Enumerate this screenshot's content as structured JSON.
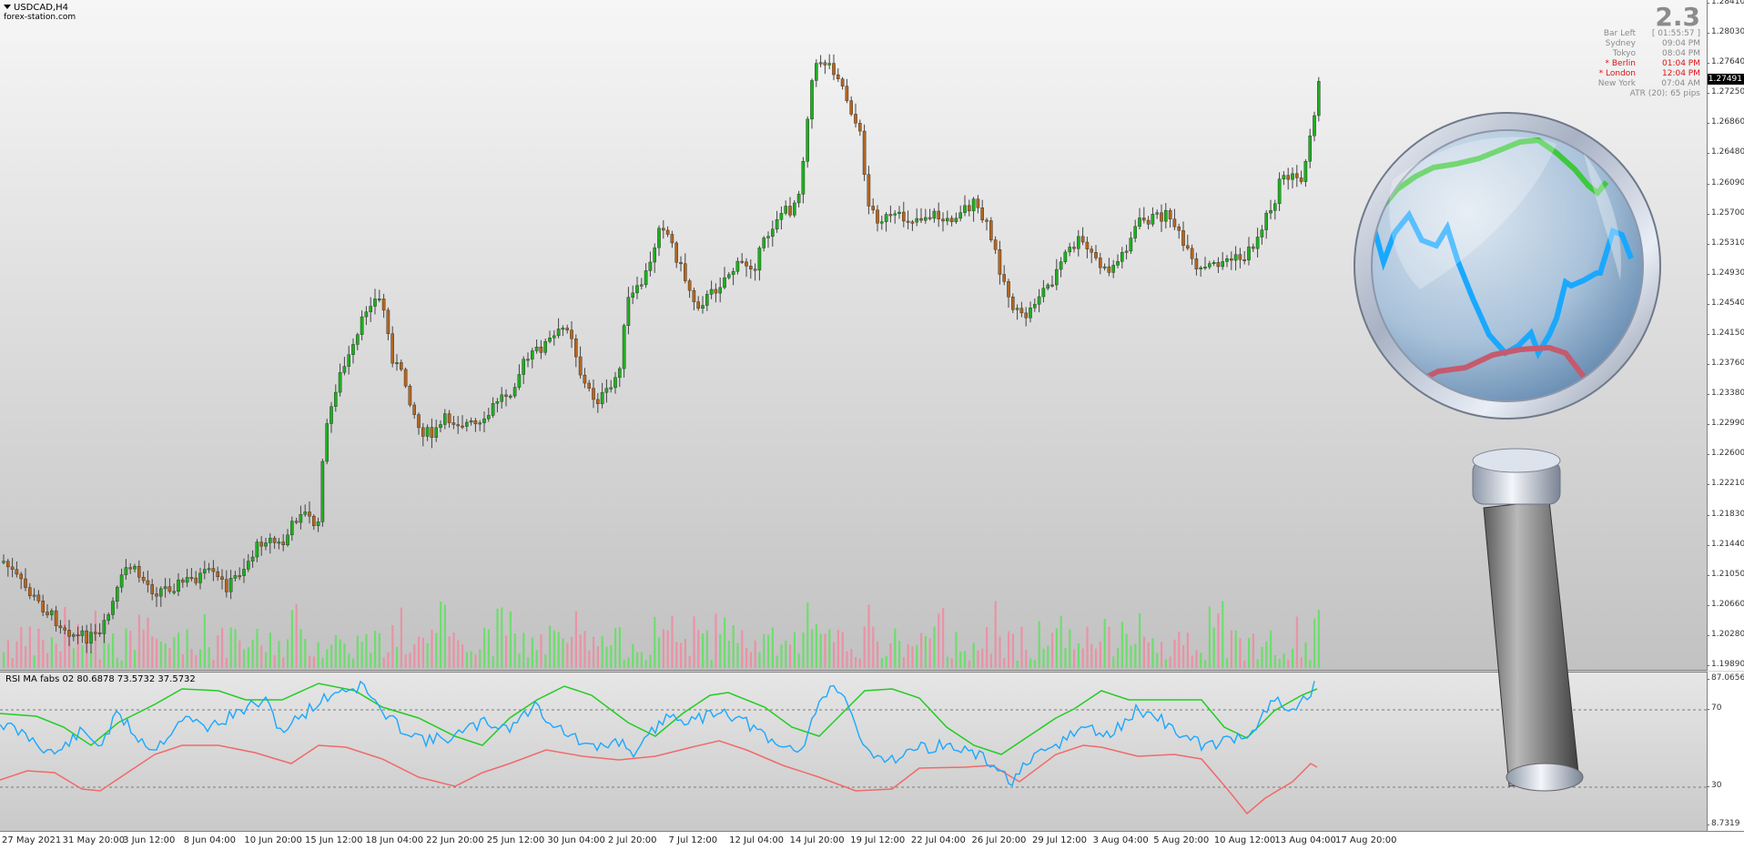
{
  "chart": {
    "symbol_timeframe": "USDCAD,H4",
    "watermark": "forex-station.com",
    "current_price": "1.27491",
    "price_axis": [
      "1.28410",
      "1.28030",
      "1.27640",
      "1.27250",
      "1.26860",
      "1.26480",
      "1.26090",
      "1.25700",
      "1.25310",
      "1.24930",
      "1.24540",
      "1.24150",
      "1.23760",
      "1.23380",
      "1.22990",
      "1.22600",
      "1.22210",
      "1.21830",
      "1.21440",
      "1.21050",
      "1.20660",
      "1.20280",
      "1.19890"
    ],
    "time_axis": [
      "27 May 2021",
      "31 May 20:00",
      "3 Jun 12:00",
      "8 Jun 04:00",
      "10 Jun 20:00",
      "15 Jun 12:00",
      "18 Jun 04:00",
      "22 Jun 20:00",
      "25 Jun 12:00",
      "30 Jun 04:00",
      "2 Jul 20:00",
      "7 Jul 12:00",
      "12 Jul 04:00",
      "14 Jul 20:00",
      "19 Jul 12:00",
      "22 Jul 04:00",
      "26 Jul 20:00",
      "29 Jul 12:00",
      "3 Aug 04:00",
      "5 Aug 20:00",
      "10 Aug 12:00",
      "13 Aug 04:00",
      "17 Aug 20:00"
    ],
    "colors": {
      "bull": "#1fae1f",
      "bear": "#b5651d",
      "wick": "#444444",
      "vol_up": "#5fe05f",
      "vol_down": "#f08aa0"
    }
  },
  "info_panel": {
    "spread": "2.3",
    "rows": [
      {
        "label": "Bar Left",
        "value": "[ 01:55:57 ]",
        "highlight": false
      },
      {
        "label": "Sydney",
        "value": "09:04 PM",
        "highlight": false
      },
      {
        "label": "Tokyo",
        "value": "08:04 PM",
        "highlight": false
      },
      {
        "label": "* Berlin",
        "value": "01:04 PM",
        "highlight": true
      },
      {
        "label": "* London",
        "value": "12:04 PM",
        "highlight": true
      },
      {
        "label": "New York",
        "value": "07:04 AM",
        "highlight": false
      }
    ],
    "atr": "ATR (20): 65 pips"
  },
  "indicator": {
    "title": "RSI MA fabs 02 80.6878 73.5732 37.5732",
    "axis": [
      "87.0656",
      "70",
      "30",
      "8.7319"
    ],
    "colors": {
      "rsi": "#1aa8ff",
      "upper": "#22cc22",
      "lower": "#f06a6a"
    }
  },
  "magnifier_icon": "magnifying-glass-icon"
}
